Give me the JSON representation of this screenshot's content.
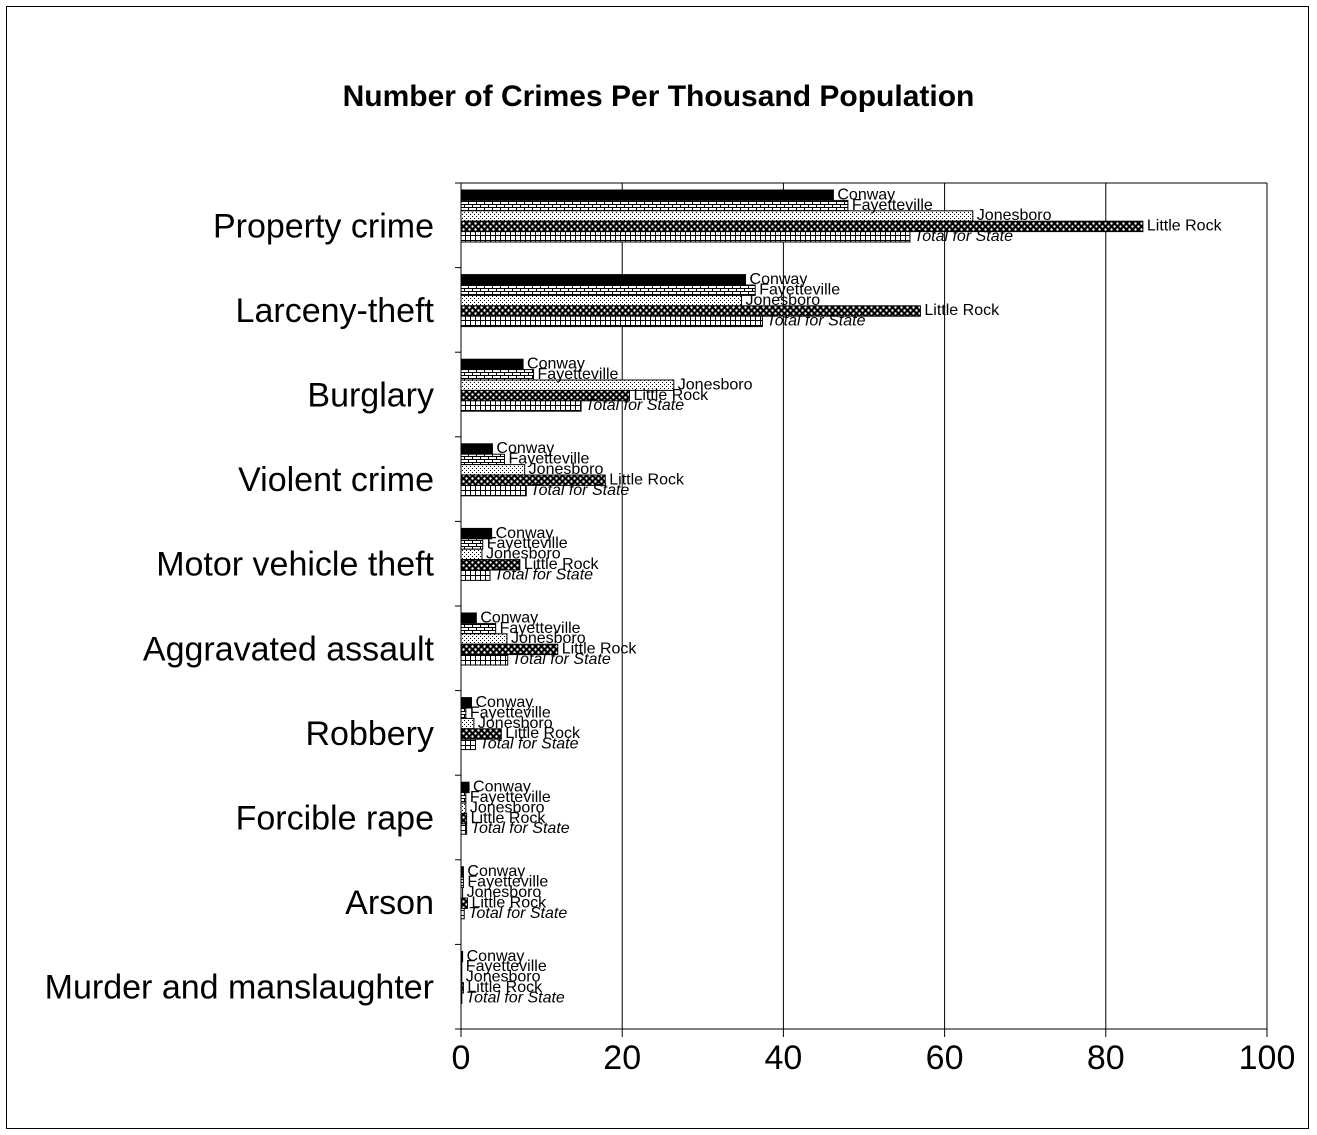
{
  "chart_data": {
    "type": "bar",
    "orientation": "horizontal",
    "title": "Number of Crimes Per Thousand Population",
    "xlabel": "",
    "ylabel": "",
    "xlim": [
      0,
      100
    ],
    "xticks": [
      0,
      20,
      40,
      60,
      80,
      100
    ],
    "grid": true,
    "legend": "none (labels on bars)",
    "categories": [
      "Property crime",
      "Larceny-theft",
      "Burglary",
      "Violent crime",
      "Motor vehicle theft",
      "Aggravated assault",
      "Robbery",
      "Forcible rape",
      "Arson",
      "Murder and manslaughter"
    ],
    "series": [
      {
        "name": "Conway",
        "pattern": "solid",
        "italic": false,
        "values": [
          46.2,
          35.3,
          7.7,
          3.9,
          3.8,
          1.9,
          1.3,
          1.0,
          0.3,
          0.2
        ]
      },
      {
        "name": "Fayetteville",
        "pattern": "brick",
        "italic": false,
        "values": [
          48.0,
          36.5,
          9.0,
          5.4,
          2.7,
          4.3,
          0.6,
          0.6,
          0.3,
          0.1
        ]
      },
      {
        "name": "Jonesboro",
        "pattern": "dots-light",
        "italic": false,
        "values": [
          63.5,
          34.8,
          26.4,
          7.9,
          2.6,
          5.7,
          1.6,
          0.6,
          0.2,
          0.1
        ]
      },
      {
        "name": "Little Rock",
        "pattern": "dots-dense",
        "italic": false,
        "values": [
          84.6,
          57.0,
          20.9,
          17.9,
          7.3,
          12.0,
          5.0,
          0.7,
          0.8,
          0.3
        ]
      },
      {
        "name": "Total for State",
        "pattern": "grid",
        "italic": true,
        "values": [
          55.7,
          37.4,
          14.9,
          8.1,
          3.6,
          5.8,
          1.8,
          0.7,
          0.4,
          0.1
        ]
      }
    ]
  }
}
